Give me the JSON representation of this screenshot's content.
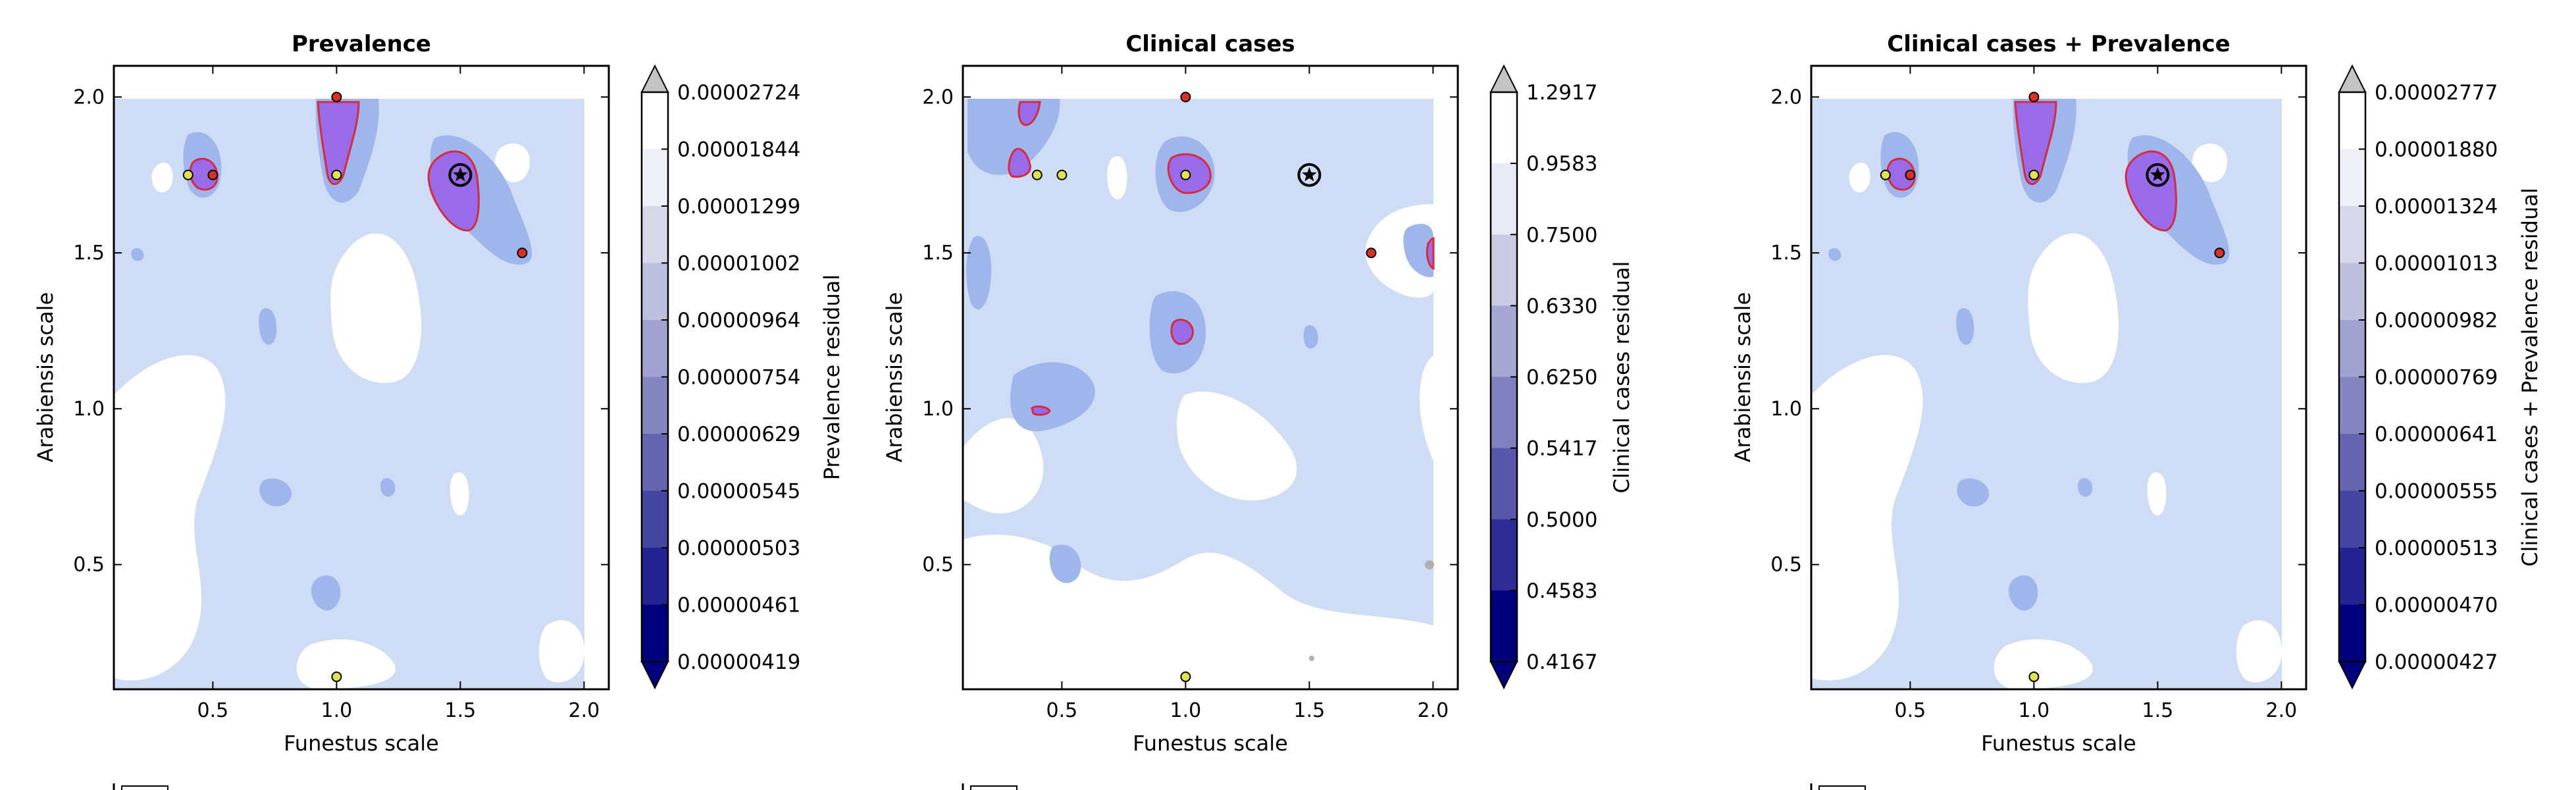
{
  "chart_data": [
    {
      "type": "heatmap",
      "title": "Prevalence",
      "xlabel": "Funestus scale",
      "ylabel": "Arabiensis scale",
      "colorbar_label": "Prevalence residual",
      "xlim": [
        0.1,
        2.1
      ],
      "ylim": [
        0.1,
        2.1
      ],
      "xticks": [
        "0.5",
        "1.0",
        "1.5",
        "2.0"
      ],
      "yticks": [
        "0.5",
        "1.0",
        "1.5",
        "2.0"
      ],
      "colorbar_levels": [
        "0.00002724",
        "0.00001844",
        "0.00001299",
        "0.00001002",
        "0.00000964",
        "0.00000754",
        "0.00000629",
        "0.00000545",
        "0.00000503",
        "0.00000461",
        "0.00000419"
      ],
      "points": [
        {
          "x": 1.0,
          "y": 2.0,
          "color": "red"
        },
        {
          "x": 0.4,
          "y": 1.75,
          "color": "yellow"
        },
        {
          "x": 0.5,
          "y": 1.75,
          "color": "red"
        },
        {
          "x": 1.0,
          "y": 1.75,
          "color": "yellow"
        },
        {
          "x": 1.75,
          "y": 1.5,
          "color": "red"
        },
        {
          "x": 1.0,
          "y": 0.14,
          "color": "yellow"
        }
      ],
      "best": {
        "x": 1.5,
        "y": 1.75
      }
    },
    {
      "type": "heatmap",
      "title": "Clinical cases",
      "xlabel": "Funestus scale",
      "ylabel": "Arabiensis scale",
      "colorbar_label": "Clinical cases residual",
      "xlim": [
        0.1,
        2.1
      ],
      "ylim": [
        0.1,
        2.1
      ],
      "xticks": [
        "0.5",
        "1.0",
        "1.5",
        "2.0"
      ],
      "yticks": [
        "0.5",
        "1.0",
        "1.5",
        "2.0"
      ],
      "colorbar_levels": [
        "1.2917",
        "0.9583",
        "0.7500",
        "0.6330",
        "0.6250",
        "0.5417",
        "0.5000",
        "0.4583",
        "0.4167"
      ],
      "points": [
        {
          "x": 1.0,
          "y": 2.0,
          "color": "red"
        },
        {
          "x": 0.4,
          "y": 1.75,
          "color": "yellow"
        },
        {
          "x": 0.5,
          "y": 1.75,
          "color": "yellow"
        },
        {
          "x": 1.0,
          "y": 1.75,
          "color": "yellow"
        },
        {
          "x": 1.75,
          "y": 1.5,
          "color": "red"
        },
        {
          "x": 1.0,
          "y": 0.14,
          "color": "yellow"
        }
      ],
      "best": {
        "x": 1.5,
        "y": 1.75
      }
    },
    {
      "type": "heatmap",
      "title": "Clinical cases + Prevalence",
      "xlabel": "Funestus scale",
      "ylabel": "Arabiensis scale",
      "colorbar_label": "Clinical cases + Prevalence residual",
      "xlim": [
        0.1,
        2.1
      ],
      "ylim": [
        0.1,
        2.1
      ],
      "xticks": [
        "0.5",
        "1.0",
        "1.5",
        "2.0"
      ],
      "yticks": [
        "0.5",
        "1.0",
        "1.5",
        "2.0"
      ],
      "colorbar_levels": [
        "0.00002777",
        "0.00001880",
        "0.00001324",
        "0.00001013",
        "0.00000982",
        "0.00000769",
        "0.00000641",
        "0.00000555",
        "0.00000513",
        "0.00000470",
        "0.00000427"
      ],
      "points": [
        {
          "x": 1.0,
          "y": 2.0,
          "color": "red"
        },
        {
          "x": 0.4,
          "y": 1.75,
          "color": "yellow"
        },
        {
          "x": 0.5,
          "y": 1.75,
          "color": "red"
        },
        {
          "x": 1.0,
          "y": 1.75,
          "color": "yellow"
        },
        {
          "x": 1.75,
          "y": 1.5,
          "color": "red"
        },
        {
          "x": 1.0,
          "y": 0.14,
          "color": "yellow"
        }
      ],
      "best": {
        "x": 1.5,
        "y": 1.75
      }
    }
  ],
  "colors": {
    "field_light": "#cfdcf5",
    "field_mid": "#9fb6ec",
    "residual_high": "#9a6be9",
    "contour_line": "#d62b3a",
    "point_red": "#d93025",
    "point_yellow": "#e2e24a",
    "cbar_bottom": "#00007f",
    "cbar_top": "#ffffff",
    "cbar_over": "#c4c4c4"
  }
}
